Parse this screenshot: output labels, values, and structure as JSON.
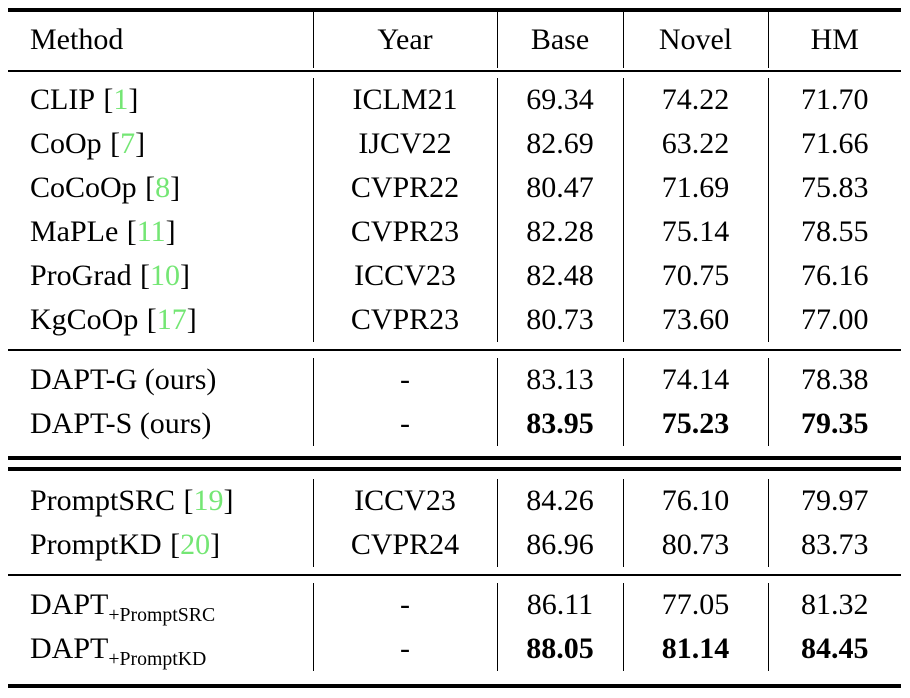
{
  "table": {
    "text_color": "#000000",
    "citation_color": "#74e674",
    "columns": [
      {
        "key": "method",
        "label": "Method"
      },
      {
        "key": "year",
        "label": "Year"
      },
      {
        "key": "base",
        "label": "Base"
      },
      {
        "key": "novel",
        "label": "Novel"
      },
      {
        "key": "hm",
        "label": "HM"
      }
    ],
    "separators": {
      "top": "thick",
      "below_header": "thin",
      "after_section": [
        "thin",
        "double",
        "thin"
      ],
      "bottom": "thick"
    },
    "sections": [
      {
        "rows": [
          {
            "method": "CLIP",
            "cite": "1",
            "year": "ICLM21",
            "base": "69.34",
            "novel": "74.22",
            "hm": "71.70",
            "bold_values": false
          },
          {
            "method": "CoOp",
            "cite": "7",
            "year": "IJCV22",
            "base": "82.69",
            "novel": "63.22",
            "hm": "71.66",
            "bold_values": false
          },
          {
            "method": "CoCoOp",
            "cite": "8",
            "year": "CVPR22",
            "base": "80.47",
            "novel": "71.69",
            "hm": "75.83",
            "bold_values": false
          },
          {
            "method": "MaPLe",
            "cite": "11",
            "year": "CVPR23",
            "base": "82.28",
            "novel": "75.14",
            "hm": "78.55",
            "bold_values": false
          },
          {
            "method": "ProGrad",
            "cite": "10",
            "year": "ICCV23",
            "base": "82.48",
            "novel": "70.75",
            "hm": "76.16",
            "bold_values": false
          },
          {
            "method": "KgCoOp",
            "cite": "17",
            "year": "CVPR23",
            "base": "80.73",
            "novel": "73.60",
            "hm": "77.00",
            "bold_values": false
          }
        ]
      },
      {
        "rows": [
          {
            "method": "DAPT-G (ours)",
            "year": "-",
            "base": "83.13",
            "novel": "74.14",
            "hm": "78.38",
            "bold_values": false
          },
          {
            "method": "DAPT-S (ours)",
            "year": "-",
            "base": "83.95",
            "novel": "75.23",
            "hm": "79.35",
            "bold_values": true
          }
        ]
      },
      {
        "rows": [
          {
            "method": "PromptSRC",
            "cite": "19",
            "year": "ICCV23",
            "base": "84.26",
            "novel": "76.10",
            "hm": "79.97",
            "bold_values": false
          },
          {
            "method": "PromptKD",
            "cite": "20",
            "year": "CVPR24",
            "base": "86.96",
            "novel": "80.73",
            "hm": "83.73",
            "bold_values": false
          }
        ]
      },
      {
        "rows": [
          {
            "method": "DAPT",
            "method_sub": "+PromptSRC",
            "year": "-",
            "base": "86.11",
            "novel": "77.05",
            "hm": "81.32",
            "bold_values": false
          },
          {
            "method": "DAPT",
            "method_sub": "+PromptKD",
            "year": "-",
            "base": "88.05",
            "novel": "81.14",
            "hm": "84.45",
            "bold_values": true
          }
        ]
      }
    ]
  }
}
